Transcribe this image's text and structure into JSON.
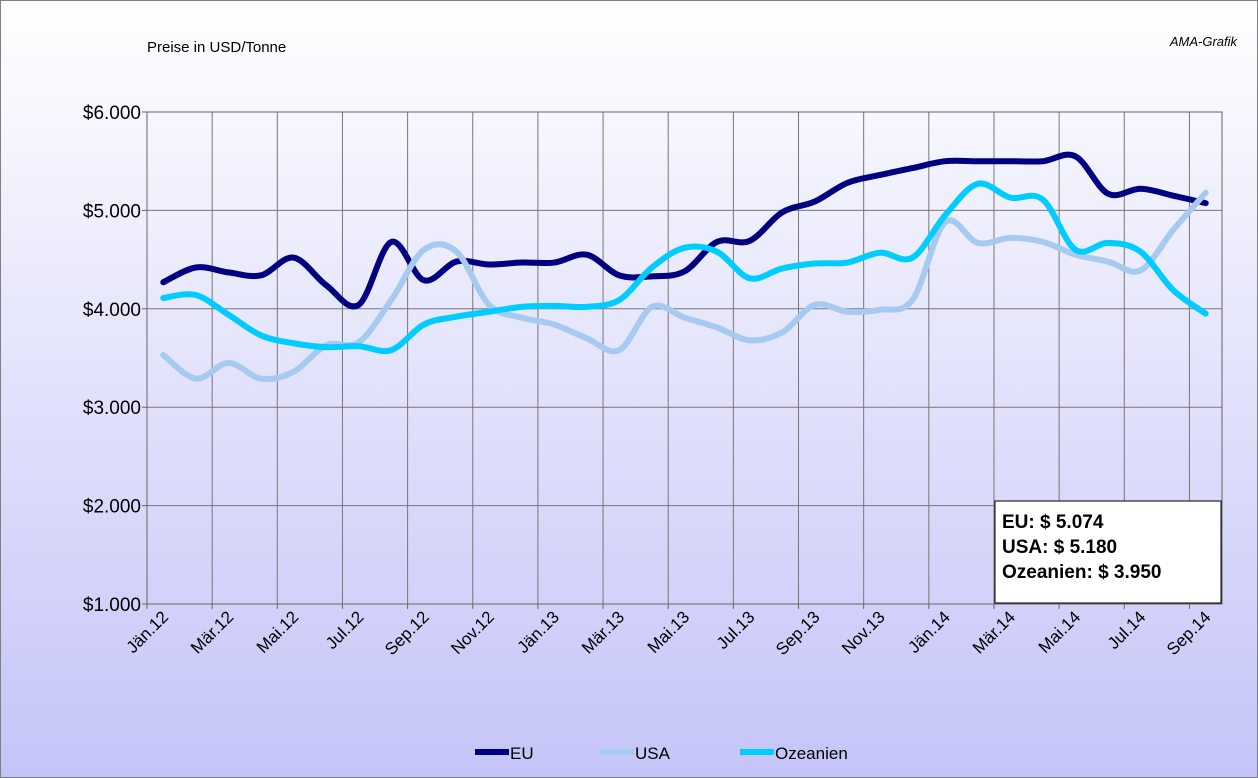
{
  "chart_data": {
    "type": "line",
    "title": "Preise in USD/Tonne",
    "source": "AMA-Grafik",
    "categories": [
      "Jän.12",
      null,
      "Mär.12",
      null,
      "Mai.12",
      null,
      "Jul.12",
      null,
      "Sep.12",
      null,
      "Nov.12",
      null,
      "Jän.13",
      null,
      "Mär.13",
      null,
      "Mai.13",
      null,
      "Jul.13",
      null,
      "Sep.13",
      null,
      "Nov.13",
      null,
      "Jän.14",
      null,
      "Mär.14",
      null,
      "Mai.14",
      null,
      "Jul.14",
      null,
      "Sep.14"
    ],
    "series": [
      {
        "name": "EU",
        "color": "#000080",
        "values": [
          4270,
          4420,
          4370,
          4340,
          4520,
          4240,
          4040,
          4680,
          4290,
          4480,
          4450,
          4470,
          4470,
          4550,
          4340,
          4330,
          4380,
          4680,
          4690,
          4980,
          5090,
          5280,
          5360,
          5430,
          5500,
          5500,
          5500,
          5500,
          5550,
          5170,
          5220,
          5150,
          5074
        ]
      },
      {
        "name": "USA",
        "color": "#a6caf0",
        "values": [
          3530,
          3290,
          3450,
          3290,
          3360,
          3630,
          3660,
          4090,
          4600,
          4580,
          4040,
          3910,
          3840,
          3700,
          3580,
          4020,
          3910,
          3810,
          3680,
          3760,
          4040,
          3970,
          3990,
          4090,
          4880,
          4670,
          4720,
          4680,
          4550,
          4480,
          4390,
          4800,
          5180
        ]
      },
      {
        "name": "Ozeanien",
        "color": "#00ccff",
        "values": [
          4110,
          4140,
          3940,
          3730,
          3650,
          3610,
          3620,
          3580,
          3840,
          3920,
          3970,
          4020,
          4030,
          4020,
          4090,
          4420,
          4620,
          4580,
          4310,
          4410,
          4460,
          4470,
          4570,
          4520,
          4950,
          5270,
          5130,
          5110,
          4600,
          4670,
          4580,
          4190,
          3950
        ]
      }
    ],
    "ylim": [
      1000,
      6000
    ],
    "yticks": [
      {
        "value": 1000,
        "label": "$1.000"
      },
      {
        "value": 2000,
        "label": "$2.000"
      },
      {
        "value": 3000,
        "label": "$3.000"
      },
      {
        "value": 4000,
        "label": "$4.000"
      },
      {
        "value": 5000,
        "label": "$5.000"
      },
      {
        "value": 6000,
        "label": "$6.000"
      }
    ],
    "grid": true,
    "legend": "bottom",
    "annotations": [
      "EU: $ 5.074",
      "USA: $ 5.180",
      "Ozeanien: $ 3.950"
    ]
  }
}
